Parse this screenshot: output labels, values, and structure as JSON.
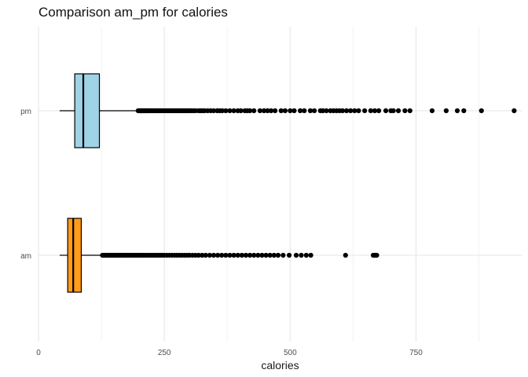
{
  "chart_data": {
    "type": "boxplot",
    "title": "Comparison am_pm for calories",
    "xlabel": "calories",
    "ylabel": "",
    "orientation": "horizontal",
    "xlim": [
      0,
      960
    ],
    "xticks": [
      0,
      250,
      500,
      750
    ],
    "xminor": [
      125,
      375,
      625,
      875
    ],
    "grid": true,
    "categories": [
      "pm",
      "am"
    ],
    "series": [
      {
        "name": "pm",
        "fill": "#9fd3e6",
        "whisker_low": 42,
        "q1": 72,
        "median": 89,
        "q3": 121,
        "whisker_high": 197,
        "outliers": [
          198,
          200,
          201,
          202,
          203,
          204,
          205,
          206,
          207,
          208,
          209,
          210,
          211,
          212,
          213,
          214,
          215,
          216,
          217,
          218,
          220,
          222,
          224,
          226,
          228,
          230,
          232,
          234,
          236,
          238,
          240,
          242,
          245,
          248,
          251,
          254,
          257,
          260,
          263,
          266,
          269,
          272,
          275,
          278,
          281,
          284,
          287,
          290,
          293,
          296,
          300,
          304,
          308,
          312,
          318,
          322,
          326,
          330,
          336,
          342,
          348,
          355,
          360,
          365,
          372,
          380,
          388,
          396,
          402,
          410,
          415,
          420,
          428,
          440,
          448,
          455,
          462,
          470,
          482,
          490,
          500,
          508,
          520,
          528,
          540,
          548,
          560,
          565,
          572,
          580,
          586,
          592,
          598,
          604,
          612,
          620,
          628,
          636,
          648,
          660,
          668,
          676,
          690,
          700,
          705,
          715,
          728,
          738,
          782,
          810,
          832,
          845,
          880,
          945
        ]
      },
      {
        "name": "am",
        "fill": "#ff9c1a",
        "whisker_low": 42,
        "q1": 58,
        "median": 69,
        "q3": 85,
        "whisker_high": 126,
        "outliers": [
          127,
          129,
          131,
          133,
          135,
          137,
          139,
          141,
          143,
          145,
          147,
          149,
          151,
          153,
          155,
          157,
          159,
          161,
          163,
          165,
          168,
          171,
          174,
          177,
          180,
          183,
          186,
          189,
          192,
          195,
          198,
          201,
          204,
          207,
          210,
          214,
          218,
          222,
          226,
          230,
          234,
          238,
          242,
          246,
          250,
          255,
          260,
          265,
          270,
          275,
          280,
          285,
          290,
          295,
          300,
          306,
          312,
          318,
          325,
          332,
          340,
          348,
          356,
          364,
          372,
          380,
          388,
          396,
          404,
          412,
          420,
          428,
          436,
          444,
          452,
          460,
          468,
          476,
          486,
          498,
          512,
          522,
          532,
          541,
          610,
          665,
          668,
          670,
          672
        ]
      }
    ]
  }
}
